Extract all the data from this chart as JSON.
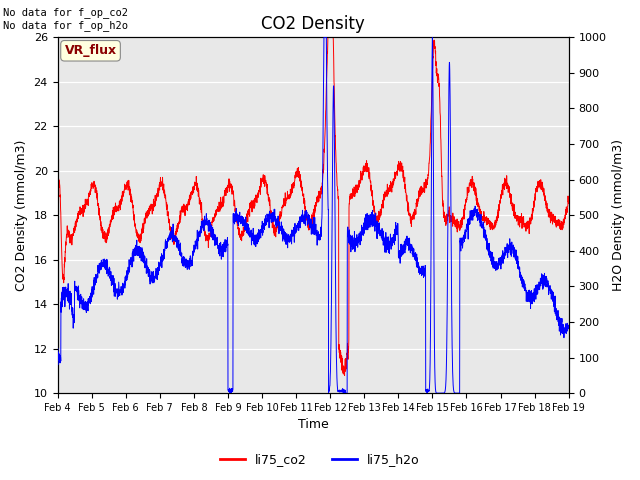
{
  "title": "CO2 Density",
  "xlabel": "Time",
  "ylabel_left": "CO2 Density (mmol/m3)",
  "ylabel_right": "H2O Density (mmol/m3)",
  "annotation_text": "No data for f_op_co2\nNo data for f_op_h2o",
  "vr_flux_label": "VR_flux",
  "legend_entries": [
    "li75_co2",
    "li75_h2o"
  ],
  "ylim_left": [
    10,
    26
  ],
  "ylim_right": [
    0,
    1000
  ],
  "yticks_left": [
    10,
    12,
    14,
    16,
    18,
    20,
    22,
    24,
    26
  ],
  "yticks_right": [
    0,
    100,
    200,
    300,
    400,
    500,
    600,
    700,
    800,
    900,
    1000
  ],
  "xtick_labels": [
    "Feb 4",
    "Feb 5",
    "Feb 6",
    "Feb 7",
    "Feb 8",
    "Feb 9",
    "Feb 10",
    "Feb 11",
    "Feb 12",
    "Feb 13",
    "Feb 14",
    "Feb 15",
    "Feb 16",
    "Feb 17",
    "Feb 18",
    "Feb 19"
  ],
  "background_color": "#e8e8e8",
  "title_fontsize": 12,
  "axis_fontsize": 9,
  "tick_fontsize": 8
}
